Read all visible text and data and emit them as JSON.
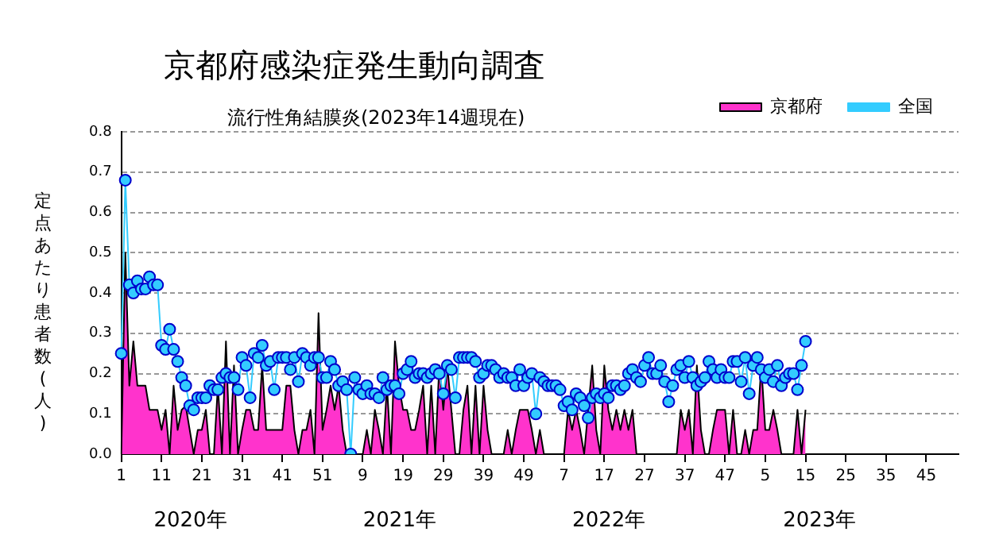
{
  "chart_data": {
    "type": "line",
    "title": "京都府感染症発生動向調査",
    "subtitle": "流行性角結膜炎(2023年14週現在)",
    "ylabel": "定点あたり患者数(人)",
    "categories": [
      "1",
      null,
      null,
      null,
      null,
      null,
      null,
      null,
      null,
      null,
      "11",
      null,
      null,
      null,
      null,
      null,
      null,
      null,
      null,
      null,
      "21",
      null,
      null,
      null,
      null,
      null,
      null,
      null,
      null,
      null,
      "31",
      null,
      null,
      null,
      null,
      null,
      null,
      null,
      null,
      null,
      "41",
      null,
      null,
      null,
      null,
      null,
      null,
      null,
      null,
      null,
      "51",
      null,
      null,
      null,
      null,
      null,
      null,
      null,
      null,
      null,
      "9",
      null,
      null,
      null,
      null,
      null,
      null,
      null,
      null,
      null,
      "19",
      null,
      null,
      null,
      null,
      null,
      null,
      null,
      null,
      null,
      "29",
      null,
      null,
      null,
      null,
      null,
      null,
      null,
      null,
      null,
      "39",
      null,
      null,
      null,
      null,
      null,
      null,
      null,
      null,
      null,
      "49",
      null,
      null,
      null,
      null,
      null,
      null,
      null,
      null,
      null,
      "7",
      null,
      null,
      null,
      null,
      null,
      null,
      null,
      null,
      null,
      "17",
      null,
      null,
      null,
      null,
      null,
      null,
      null,
      null,
      null,
      "27",
      null,
      null,
      null,
      null,
      null,
      null,
      null,
      null,
      null,
      "37",
      null,
      null,
      null,
      null,
      null,
      null,
      null,
      null,
      null,
      "47",
      null,
      null,
      null,
      null,
      null,
      null,
      null,
      null,
      null,
      "5",
      null,
      null,
      null,
      null,
      null,
      null,
      null,
      null,
      null,
      "15",
      null,
      null,
      null,
      null,
      null,
      null,
      null,
      null,
      null,
      "25",
      null,
      null,
      null,
      null,
      null,
      null,
      null,
      null,
      null,
      "35",
      null,
      null,
      null,
      null,
      null,
      null,
      null,
      null,
      null,
      "45",
      null,
      null,
      null,
      null,
      null,
      null,
      null,
      null
    ],
    "series": [
      {
        "name": "京都府",
        "type": "area",
        "color": "#ff33cc",
        "values": [
          0.0,
          0.5,
          0.17,
          0.28,
          0.17,
          0.17,
          0.17,
          0.11,
          0.11,
          0.11,
          0.06,
          0.11,
          0.0,
          0.17,
          0.06,
          0.11,
          0.12,
          0.06,
          0.0,
          0.06,
          0.06,
          0.11,
          0.0,
          0.0,
          0.17,
          0.0,
          0.28,
          0.0,
          0.22,
          0.0,
          0.06,
          0.11,
          0.11,
          0.06,
          0.06,
          0.22,
          0.06,
          0.06,
          0.06,
          0.06,
          0.06,
          0.17,
          0.17,
          0.06,
          0.0,
          0.06,
          0.06,
          0.11,
          0.0,
          0.35,
          0.06,
          0.11,
          0.17,
          0.11,
          0.17,
          0.06,
          0.0,
          0.0,
          0.0,
          0.0,
          0.0,
          0.06,
          0.0,
          0.11,
          0.06,
          0.0,
          0.17,
          0.0,
          0.28,
          0.17,
          0.11,
          0.11,
          0.06,
          0.06,
          0.11,
          0.17,
          0.0,
          0.17,
          0.0,
          0.22,
          0.11,
          0.22,
          0.11,
          0.0,
          0.0,
          0.11,
          0.17,
          0.0,
          0.17,
          0.0,
          0.17,
          0.06,
          0.0,
          0.0,
          0.0,
          0.0,
          0.06,
          0.0,
          0.06,
          0.11,
          0.11,
          0.11,
          0.06,
          0.0,
          0.06,
          0.0,
          0.0,
          0.0,
          0.0,
          0.0,
          0.0,
          0.11,
          0.06,
          0.11,
          0.06,
          0.0,
          0.11,
          0.22,
          0.06,
          0.0,
          0.22,
          0.11,
          0.06,
          0.11,
          0.06,
          0.11,
          0.06,
          0.11,
          0.0,
          0.0,
          0.0,
          0.0,
          0.0,
          0.0,
          0.0,
          0.0,
          0.0,
          0.0,
          0.0,
          0.11,
          0.06,
          0.11,
          0.0,
          0.22,
          0.06,
          0.0,
          0.0,
          0.06,
          0.11,
          0.11,
          0.11,
          0.0,
          0.11,
          0.0,
          0.0,
          0.06,
          0.0,
          0.06,
          0.06,
          0.22,
          0.06,
          0.06,
          0.11,
          0.06,
          0.0,
          0.0,
          0.0,
          0.0,
          0.11,
          0.0,
          0.11,
          null,
          null,
          null,
          null,
          null,
          null,
          null,
          null,
          null,
          null,
          null,
          null,
          null,
          null,
          null,
          null,
          null,
          null,
          null,
          null,
          null,
          null,
          null,
          null,
          null,
          null,
          null,
          null,
          null,
          null,
          null,
          null,
          null,
          null,
          null,
          null,
          null,
          null
        ]
      },
      {
        "name": "全国",
        "type": "line",
        "color": "#33ccff",
        "marker": "circle",
        "values": [
          0.25,
          0.68,
          0.42,
          0.4,
          0.43,
          0.41,
          0.41,
          0.44,
          0.42,
          0.42,
          0.27,
          0.26,
          0.31,
          0.26,
          0.23,
          0.19,
          0.17,
          0.12,
          0.11,
          0.14,
          0.14,
          0.14,
          0.17,
          0.16,
          0.16,
          0.19,
          0.2,
          0.19,
          0.19,
          0.16,
          0.24,
          0.22,
          0.14,
          0.25,
          0.24,
          0.27,
          0.22,
          0.23,
          0.16,
          0.24,
          0.24,
          0.24,
          0.21,
          0.24,
          0.18,
          0.25,
          0.24,
          0.22,
          0.24,
          0.24,
          0.19,
          0.19,
          0.23,
          0.21,
          0.17,
          0.18,
          0.16,
          0.0,
          0.19,
          0.16,
          0.15,
          0.17,
          0.15,
          0.15,
          0.14,
          0.19,
          0.16,
          0.17,
          0.17,
          0.15,
          0.2,
          0.21,
          0.23,
          0.19,
          0.2,
          0.2,
          0.19,
          0.2,
          0.21,
          0.2,
          0.15,
          0.22,
          0.21,
          0.14,
          0.24,
          0.24,
          0.24,
          0.24,
          0.23,
          0.19,
          0.2,
          0.22,
          0.22,
          0.21,
          0.19,
          0.2,
          0.19,
          0.19,
          0.17,
          0.21,
          0.17,
          0.19,
          0.2,
          0.1,
          0.19,
          0.18,
          0.17,
          0.17,
          0.17,
          0.16,
          0.12,
          0.13,
          0.11,
          0.15,
          0.14,
          0.12,
          0.09,
          0.14,
          0.15,
          0.14,
          0.15,
          0.14,
          0.17,
          0.17,
          0.16,
          0.17,
          0.2,
          0.21,
          0.19,
          0.18,
          0.22,
          0.24,
          0.2,
          0.2,
          0.22,
          0.18,
          0.13,
          0.17,
          0.21,
          0.22,
          0.19,
          0.23,
          0.19,
          0.17,
          0.18,
          0.19,
          0.23,
          0.21,
          0.19,
          0.21,
          0.19,
          0.19,
          0.23,
          0.23,
          0.18,
          0.24,
          0.15,
          0.22,
          0.24,
          0.21,
          0.19,
          0.21,
          0.18,
          0.22,
          0.17,
          0.19,
          0.2,
          0.2,
          0.16,
          0.22,
          0.28,
          null,
          null,
          null,
          null,
          null,
          null,
          null,
          null,
          null,
          null,
          null,
          null,
          null,
          null,
          null,
          null,
          null,
          null,
          null,
          null,
          null,
          null,
          null,
          null,
          null,
          null,
          null,
          null,
          null,
          null,
          null,
          null,
          null,
          null,
          null,
          null,
          null,
          null
        ]
      }
    ],
    "ylim": [
      0,
      0.8
    ],
    "yticks": [
      {
        "value": 0,
        "label": "0.0"
      },
      {
        "value": 0.1,
        "label": "0.1"
      },
      {
        "value": 0.2,
        "label": "0.2"
      },
      {
        "value": 0.3,
        "label": "0.3"
      },
      {
        "value": 0.4,
        "label": "0.4"
      },
      {
        "value": 0.5,
        "label": "0.5"
      },
      {
        "value": 0.6,
        "label": "0.6"
      },
      {
        "value": 0.7,
        "label": "0.7"
      },
      {
        "value": 0.8,
        "label": "0.8"
      }
    ],
    "grid": "y",
    "legend": "top right",
    "annotations": [
      "2020年",
      "2021年",
      "2022年",
      "2023年"
    ]
  }
}
